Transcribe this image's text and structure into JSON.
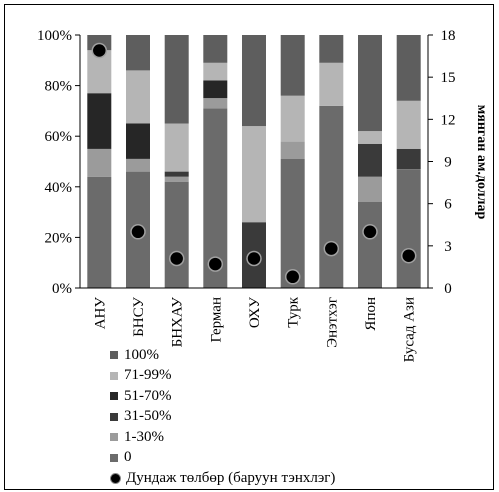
{
  "chart_data": {
    "type": "bar",
    "stacked": true,
    "normalized": true,
    "categories": [
      "АНУ",
      "БНСУ",
      "БНХАУ",
      "Герман",
      "ОХУ",
      "Турк",
      "Энэтхэг",
      "Япон",
      "Бусад Ази"
    ],
    "series": [
      {
        "name": "0",
        "color": "#6b6b6b",
        "values": [
          44,
          46,
          42,
          71,
          0,
          51,
          72,
          34,
          47
        ]
      },
      {
        "name": "1-30%",
        "color": "#9b9b9b",
        "values": [
          11,
          5,
          2,
          4,
          0,
          7,
          0,
          10,
          0
        ]
      },
      {
        "name": "31-50%",
        "color": "#3a3a3a",
        "values": [
          0,
          0,
          2,
          0,
          26,
          0,
          0,
          13,
          8
        ]
      },
      {
        "name": "51-70%",
        "color": "#262626",
        "values": [
          22,
          14,
          0,
          7,
          0,
          0,
          0,
          0,
          0
        ]
      },
      {
        "name": "71-99%",
        "color": "#b5b5b5",
        "values": [
          17,
          21,
          19,
          7,
          38,
          18,
          17,
          5,
          19
        ]
      },
      {
        "name": "100%",
        "color": "#5e5e5e",
        "values": [
          6,
          14,
          35,
          11,
          36,
          24,
          11,
          38,
          26
        ]
      }
    ],
    "average": {
      "name": "Дундаж төлбөр (баруун тэнхлэг)",
      "values": [
        16.9,
        4.0,
        2.1,
        1.7,
        2.1,
        0.8,
        2.8,
        4.0,
        2.3
      ]
    },
    "yticks_left": [
      "0%",
      "20%",
      "40%",
      "60%",
      "80%",
      "100%"
    ],
    "yticks_right": [
      "0",
      "3",
      "6",
      "9",
      "12",
      "15",
      "18"
    ],
    "ylim_left": [
      0,
      100
    ],
    "ylim_right": [
      0,
      18
    ],
    "ylabel_right": "мянган ам.доллар",
    "legend_position": "bottom-left"
  }
}
